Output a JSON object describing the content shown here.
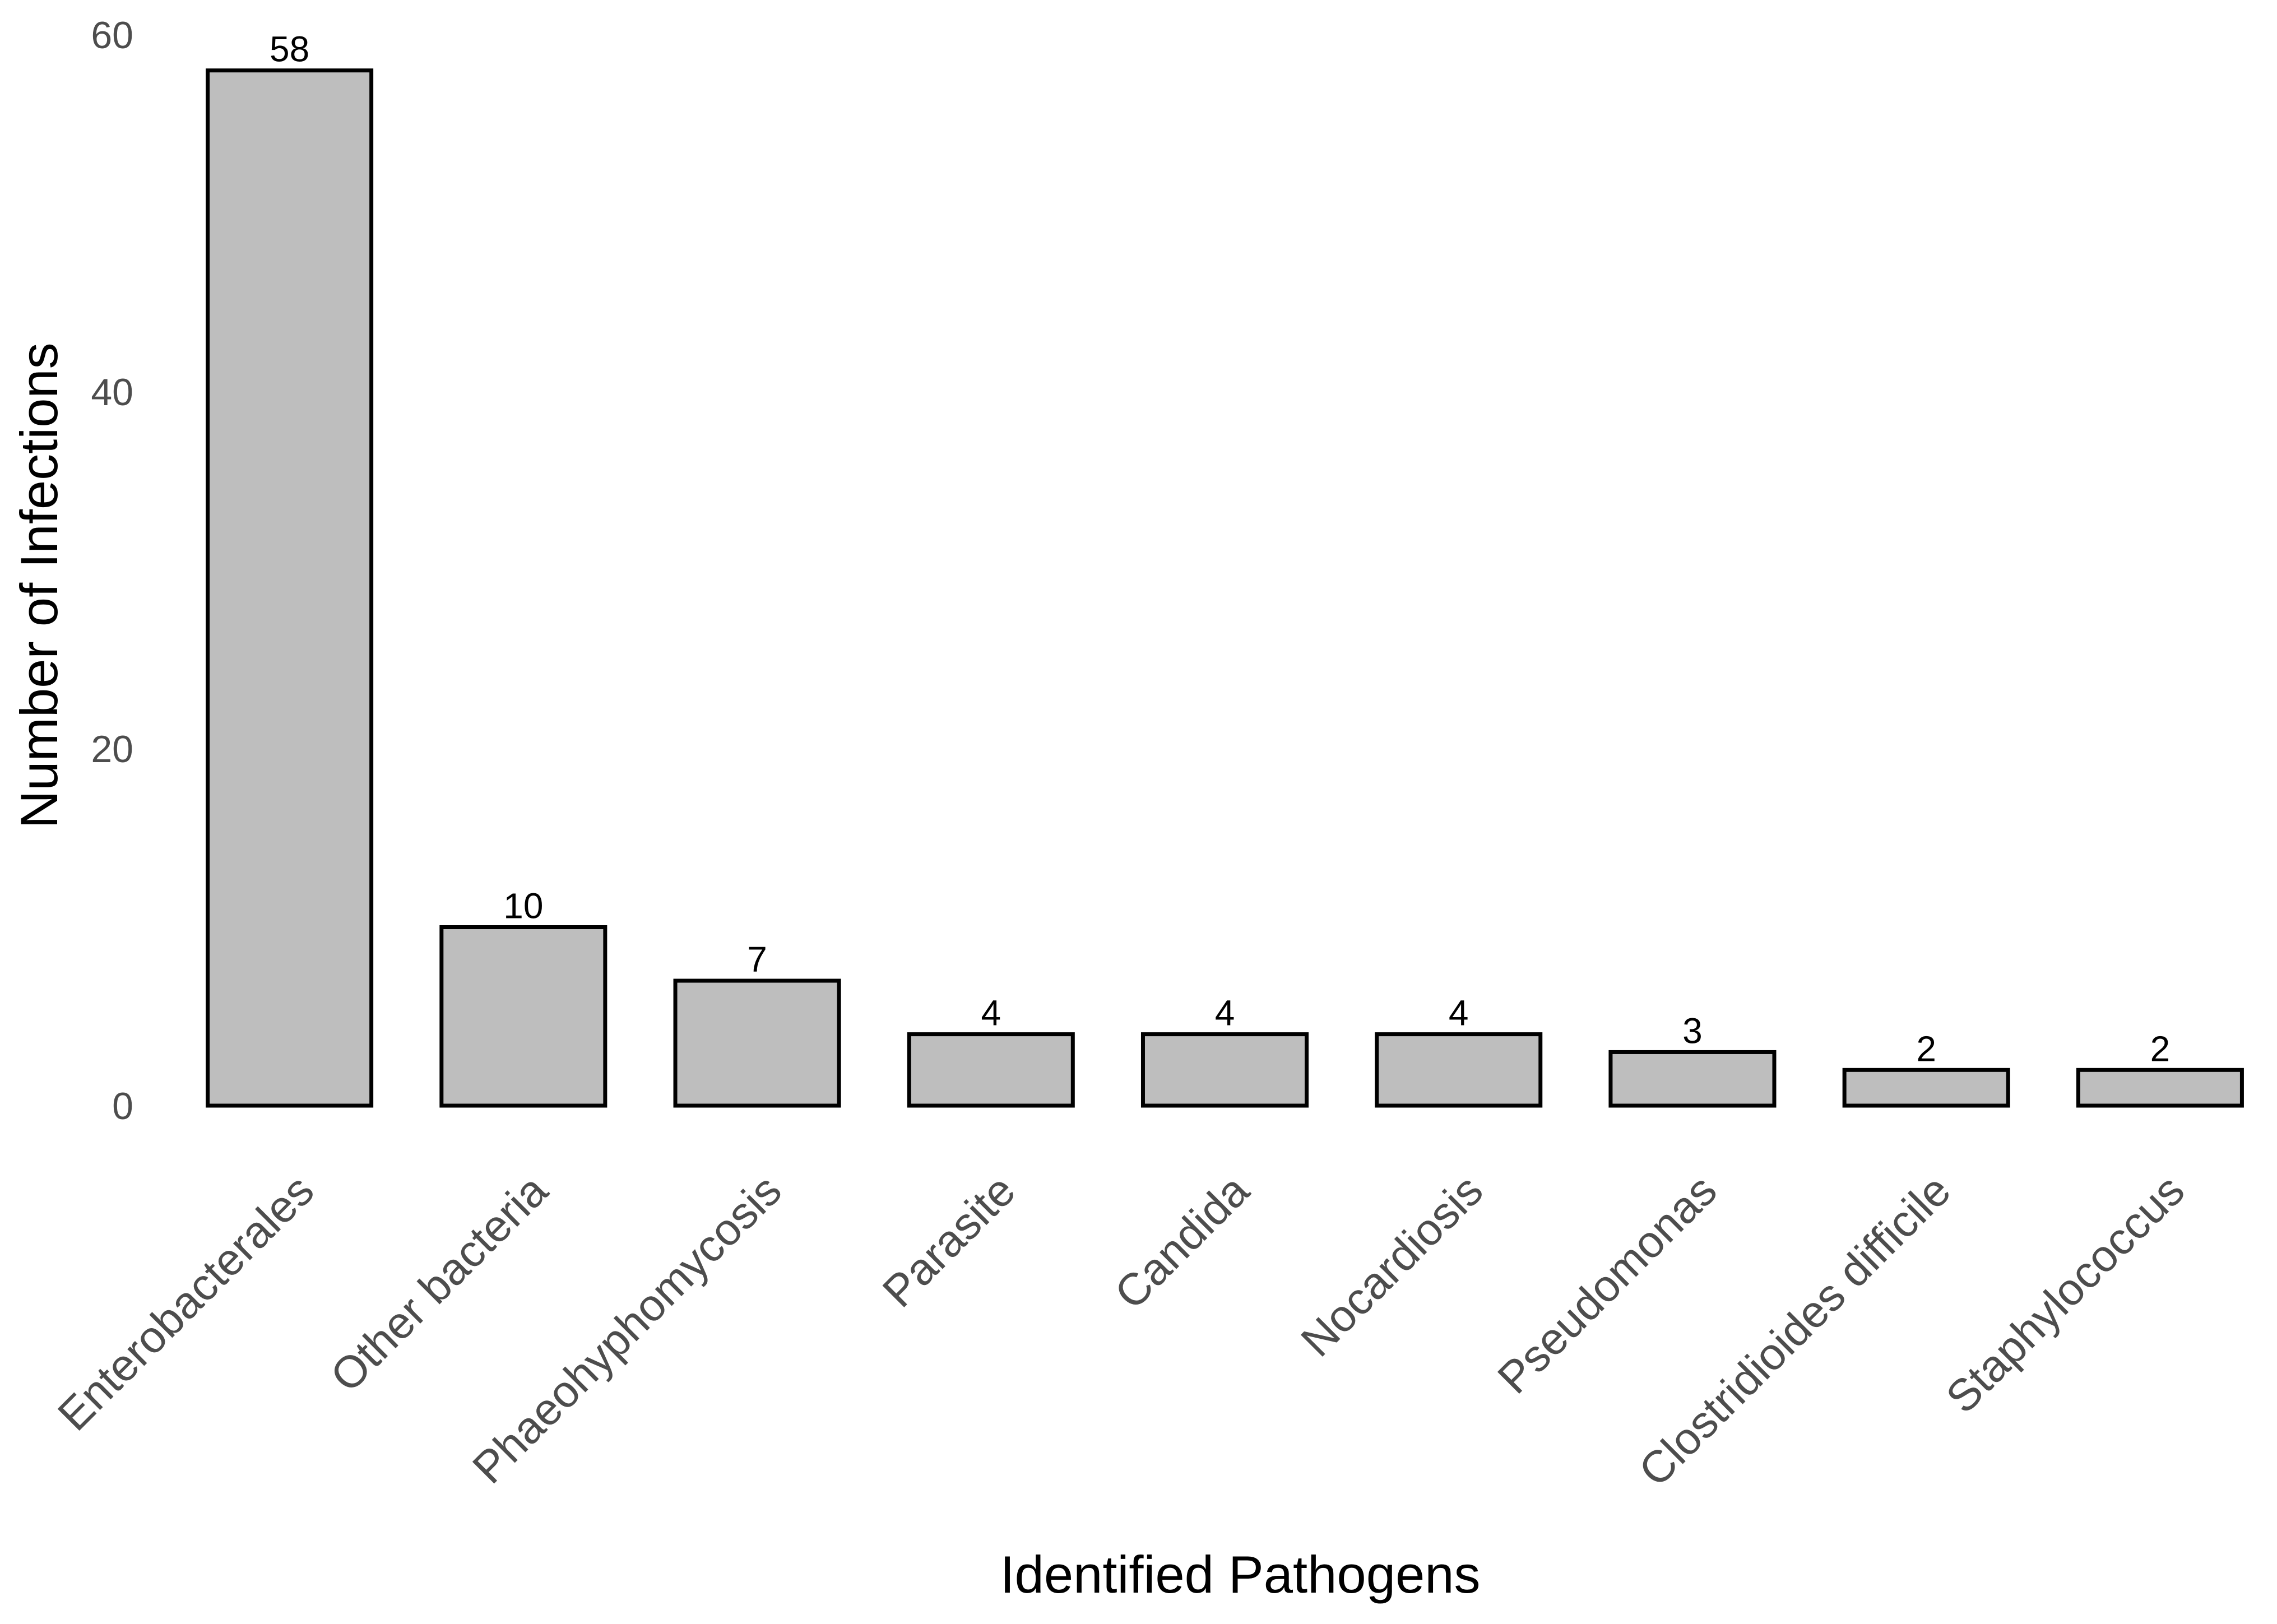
{
  "chart_data": {
    "type": "bar",
    "categories": [
      "Enterobacterales",
      "Other bacteria",
      "Phaeohyphomycosis",
      "Parasite",
      "Candida",
      "Nocardiosis",
      "Pseudomonas",
      "Clostridioides difficile",
      "Staphylococcus"
    ],
    "values": [
      58,
      10,
      7,
      4,
      4,
      4,
      3,
      2,
      2
    ],
    "data_labels": [
      "58",
      "10",
      "7",
      "4",
      "4",
      "4",
      "3",
      "2",
      "2"
    ],
    "xlabel": "Identified Pathogens",
    "ylabel": "Number of Infections",
    "ylim": [
      0,
      60
    ],
    "yticks": [
      0,
      20,
      40,
      60
    ],
    "grid": false,
    "legend": "none",
    "colors": {
      "bar_fill": "#bebebe",
      "bar_stroke": "#000000",
      "tick_text": "#4d4d4d"
    }
  }
}
